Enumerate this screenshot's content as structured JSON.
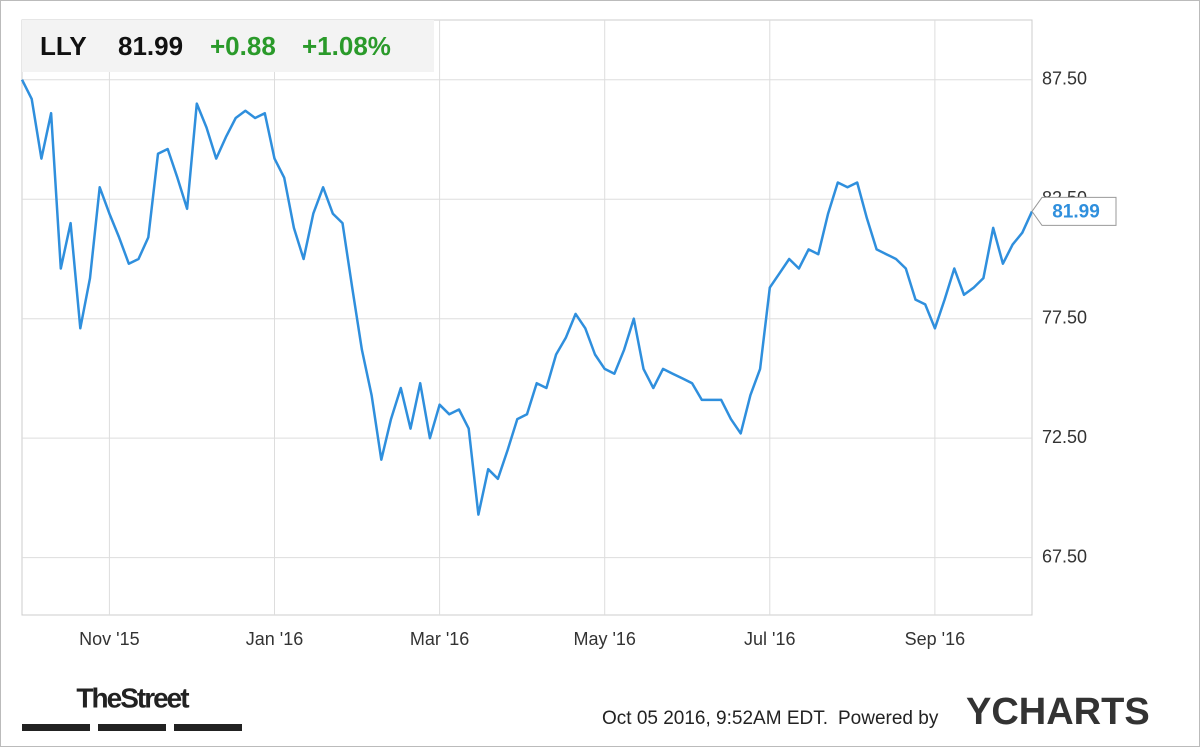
{
  "chart_data": {
    "type": "line",
    "price": "81.99",
    "change": "+0.88",
    "change_pct": "+1.08%",
    "categories": [
      null,
      null,
      null,
      null,
      null,
      null,
      null,
      null,
      null,
      "Nov '15",
      null,
      null,
      null,
      null,
      null,
      null,
      null,
      null,
      null,
      null,
      null,
      null,
      null,
      null,
      null,
      null,
      "Jan '16",
      null,
      null,
      null,
      null,
      null,
      null,
      null,
      null,
      null,
      null,
      null,
      null,
      null,
      null,
      null,
      null,
      "Mar '16",
      null,
      null,
      null,
      null,
      null,
      null,
      null,
      null,
      null,
      null,
      null,
      null,
      null,
      null,
      null,
      null,
      "May '16",
      null,
      null,
      null,
      null,
      null,
      null,
      null,
      null,
      null,
      null,
      null,
      null,
      null,
      null,
      null,
      null,
      "Jul '16",
      null,
      null,
      null,
      null,
      null,
      null,
      null,
      null,
      null,
      null,
      null,
      null,
      null,
      null,
      null,
      null,
      "Sep '16",
      null,
      null,
      null,
      null,
      null,
      null,
      null,
      null,
      null,
      null
    ],
    "series": [
      {
        "name": "LLY",
        "color": "#2f8fdd",
        "values": [
          87.5,
          86.7,
          84.2,
          86.1,
          79.6,
          81.5,
          77.1,
          79.2,
          83.0,
          81.9,
          80.9,
          79.8,
          80.0,
          80.9,
          84.4,
          84.6,
          83.4,
          82.1,
          86.5,
          85.5,
          84.2,
          85.1,
          85.9,
          86.2,
          85.9,
          86.1,
          84.2,
          83.4,
          81.3,
          80.0,
          81.9,
          83.0,
          81.9,
          81.5,
          78.8,
          76.2,
          74.3,
          71.6,
          73.3,
          74.6,
          72.9,
          74.8,
          72.5,
          73.9,
          73.5,
          73.7,
          72.9,
          69.3,
          71.2,
          70.8,
          72.0,
          73.3,
          73.5,
          74.8,
          74.6,
          76.0,
          76.7,
          77.7,
          77.1,
          76.0,
          75.4,
          75.2,
          76.2,
          77.5,
          75.4,
          74.6,
          75.4,
          75.2,
          75.0,
          74.8,
          74.1,
          74.1,
          74.1,
          73.3,
          72.7,
          74.3,
          75.4,
          78.8,
          79.4,
          80.0,
          79.6,
          80.4,
          80.2,
          81.9,
          83.2,
          83.0,
          83.2,
          81.7,
          80.4,
          80.2,
          80.0,
          79.6,
          78.3,
          78.1,
          77.1,
          78.3,
          79.6,
          78.5,
          78.8,
          79.2,
          81.3,
          79.8,
          80.6,
          81.1,
          81.99
        ]
      }
    ],
    "ylim": [
      65.1,
      90.0
    ],
    "yticks": [
      {
        "value": 67.5,
        "label": "67.50"
      },
      {
        "value": 72.5,
        "label": "72.50"
      },
      {
        "value": 77.5,
        "label": "77.50"
      },
      {
        "value": 82.5,
        "label": "82.50"
      },
      {
        "value": 87.5,
        "label": "87.50"
      }
    ],
    "grid": true
  },
  "footer": {
    "source": "TheStreet",
    "timestamp": "Oct 05 2016, 9:52AM EDT.",
    "powered_by": "Powered by",
    "brand": "YCHARTS"
  }
}
